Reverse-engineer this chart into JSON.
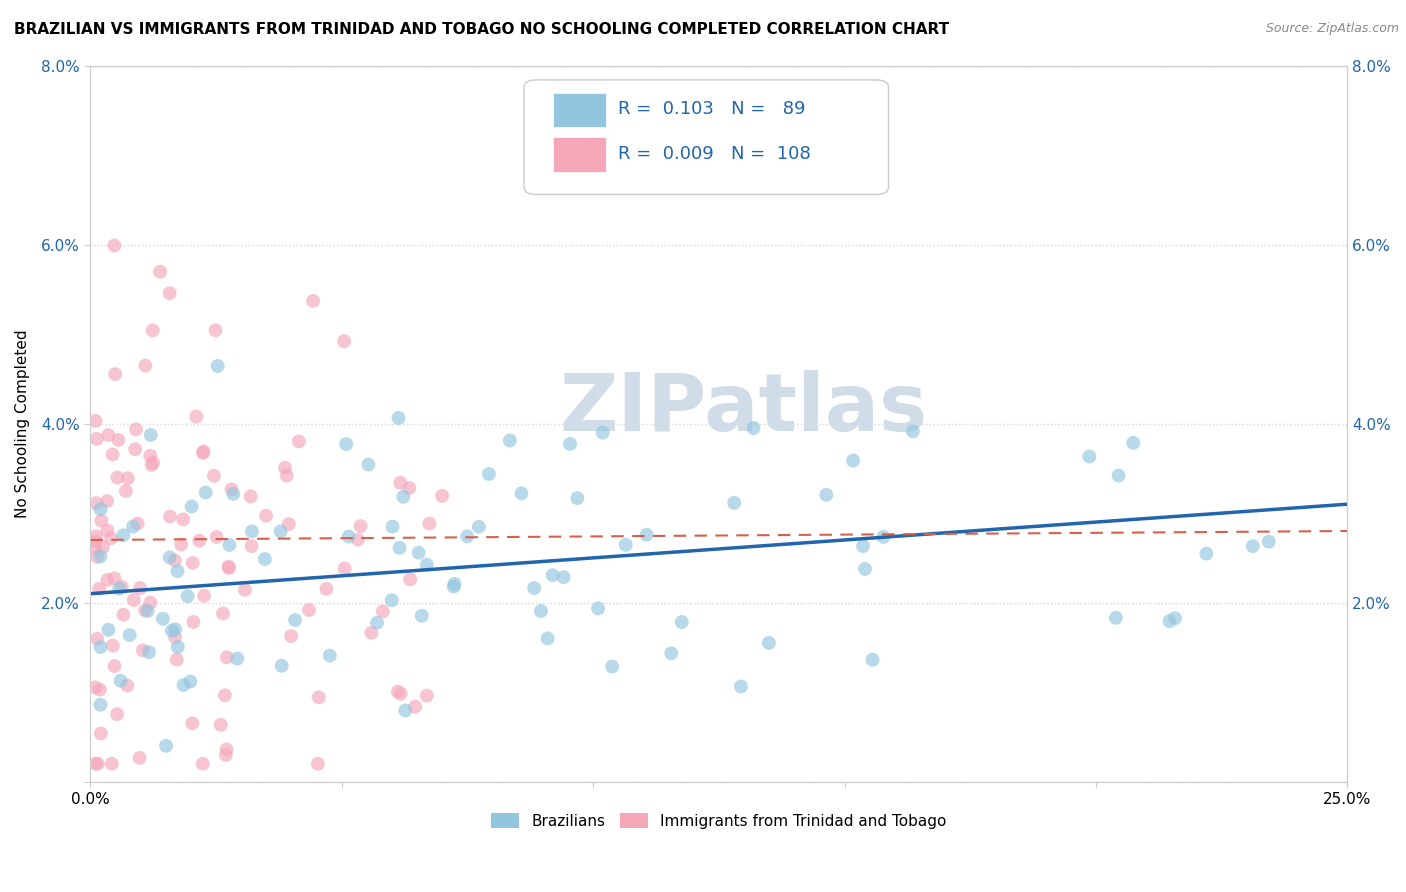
{
  "title": "BRAZILIAN VS IMMIGRANTS FROM TRINIDAD AND TOBAGO NO SCHOOLING COMPLETED CORRELATION CHART",
  "source": "Source: ZipAtlas.com",
  "ylabel": "No Schooling Completed",
  "xlim": [
    0.0,
    0.25
  ],
  "ylim": [
    0.0,
    0.08
  ],
  "xtick_positions": [
    0.0,
    0.05,
    0.1,
    0.15,
    0.2,
    0.25
  ],
  "xtick_labels": [
    "0.0%",
    "",
    "",
    "",
    "",
    "25.0%"
  ],
  "ytick_positions": [
    0.0,
    0.02,
    0.04,
    0.06,
    0.08
  ],
  "ytick_labels": [
    "",
    "2.0%",
    "4.0%",
    "6.0%",
    "8.0%"
  ],
  "blue_R": 0.103,
  "blue_N": 89,
  "pink_R": 0.009,
  "pink_N": 108,
  "blue_color": "#92c5de",
  "pink_color": "#f4a7b9",
  "blue_line_color": "#2166ac",
  "pink_line_color": "#d6604d",
  "watermark_text": "ZIPatlas",
  "watermark_color": "#d0dde8",
  "legend_label_blue": "Brazilians",
  "legend_label_pink": "Immigrants from Trinidad and Tobago",
  "blue_line_x0": 0.0,
  "blue_line_y0": 0.021,
  "blue_line_x1": 0.25,
  "blue_line_y1": 0.031,
  "pink_line_x0": 0.0,
  "pink_line_y0": 0.027,
  "pink_line_x1": 0.25,
  "pink_line_y1": 0.028,
  "grid_color": "#e0e0e0",
  "grid_linestyle": "dotted",
  "title_fontsize": 11,
  "tick_fontsize": 11,
  "ylabel_fontsize": 11,
  "source_fontsize": 9,
  "legend_fontsize": 12,
  "scatter_size": 100,
  "scatter_alpha": 0.65
}
